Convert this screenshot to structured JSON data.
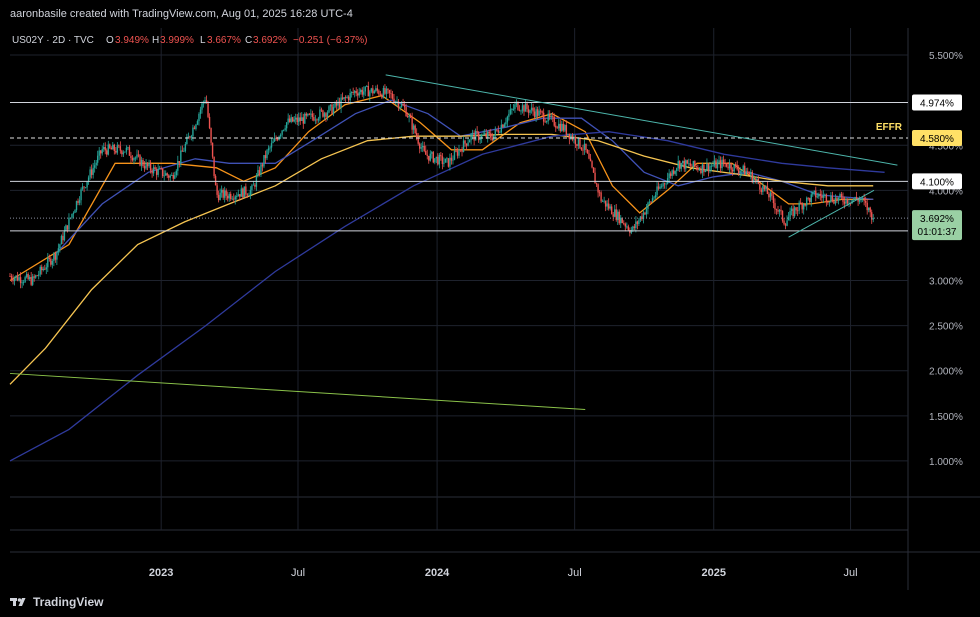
{
  "header": {
    "credit": "aaronbasile created with TradingView.com, Aug 01, 2025 16:28 UTC-4"
  },
  "legend": {
    "symbol": "US02Y · 2D · TVC",
    "o_label": "O",
    "o_value": "3.949%",
    "h_label": "H",
    "h_value": "3.999%",
    "l_label": "L",
    "l_value": "3.667%",
    "c_label": "C",
    "c_value": "3.692%",
    "change": "−0.251 (−6.37%)"
  },
  "footer": {
    "brand": "TradingView",
    "logo_icon": "tradingview-logo-icon"
  },
  "colors": {
    "background": "#000000",
    "grid": "#1e222d",
    "candle_up": "#26a69a",
    "candle_down": "#ef5350",
    "sma_fast": "#f7931a",
    "sma_mid": "#3f51b5",
    "sma_slow": "#f5c451",
    "sma_long": "#2f3a9c",
    "trendline_top": "#4db6ac",
    "trendline_green": "#8bc34a",
    "effr": "#ffe066"
  },
  "chart_data": {
    "type": "candlestick",
    "symbol": "US02Y",
    "interval": "2D",
    "source": "TVC",
    "y_axis": {
      "unit": "%",
      "range": [
        0.6,
        5.8
      ],
      "ticks": [
        "5.500%",
        "4.500%",
        "4.000%",
        "3.000%",
        "2.500%",
        "2.000%",
        "1.500%",
        "1.000%"
      ],
      "tick_values": [
        5.5,
        4.5,
        4.0,
        3.0,
        2.5,
        2.0,
        1.5,
        1.0
      ]
    },
    "x_axis": {
      "range": [
        "2022-06-15",
        "2025-09-15"
      ],
      "ticks": [
        "2023",
        "Jul",
        "2024",
        "Jul",
        "2025",
        "Jul"
      ],
      "tick_dates": [
        "2023-01-01",
        "2023-07-01",
        "2024-01-01",
        "2024-07-01",
        "2025-01-01",
        "2025-07-01"
      ]
    },
    "grid": true,
    "price_levels": [
      {
        "label": "4.974%",
        "value": 4.974,
        "style": "solid"
      },
      {
        "label": "4.100%",
        "value": 4.1,
        "style": "solid"
      },
      {
        "label": "3.551%",
        "value": 3.551,
        "style": "solid"
      },
      {
        "label": "4.580%",
        "value": 4.58,
        "style": "dashed",
        "name": "EFFR"
      }
    ],
    "last_price": {
      "label": "3.692%",
      "value": 3.692,
      "countdown": "01:01:37"
    },
    "close_series": [
      {
        "date": "2022-06-15",
        "c": 3.05
      },
      {
        "date": "2022-07-15",
        "c": 3.0
      },
      {
        "date": "2022-08-15",
        "c": 3.3
      },
      {
        "date": "2022-09-15",
        "c": 3.95
      },
      {
        "date": "2022-10-15",
        "c": 4.45
      },
      {
        "date": "2022-11-15",
        "c": 4.45
      },
      {
        "date": "2022-12-15",
        "c": 4.25
      },
      {
        "date": "2023-01-15",
        "c": 4.15
      },
      {
        "date": "2023-02-15",
        "c": 4.75
      },
      {
        "date": "2023-03-01",
        "c": 5.05
      },
      {
        "date": "2023-03-15",
        "c": 3.95
      },
      {
        "date": "2023-04-01",
        "c": 3.95
      },
      {
        "date": "2023-05-01",
        "c": 4.0
      },
      {
        "date": "2023-05-20",
        "c": 4.4
      },
      {
        "date": "2023-06-15",
        "c": 4.75
      },
      {
        "date": "2023-07-15",
        "c": 4.8
      },
      {
        "date": "2023-08-15",
        "c": 4.9
      },
      {
        "date": "2023-09-15",
        "c": 5.1
      },
      {
        "date": "2023-10-15",
        "c": 5.1
      },
      {
        "date": "2023-11-01",
        "c": 5.05
      },
      {
        "date": "2023-11-20",
        "c": 4.9
      },
      {
        "date": "2023-12-15",
        "c": 4.4
      },
      {
        "date": "2024-01-15",
        "c": 4.3
      },
      {
        "date": "2024-02-15",
        "c": 4.6
      },
      {
        "date": "2024-03-15",
        "c": 4.6
      },
      {
        "date": "2024-04-15",
        "c": 4.95
      },
      {
        "date": "2024-05-15",
        "c": 4.85
      },
      {
        "date": "2024-06-15",
        "c": 4.7
      },
      {
        "date": "2024-07-15",
        "c": 4.45
      },
      {
        "date": "2024-08-05",
        "c": 3.9
      },
      {
        "date": "2024-09-15",
        "c": 3.55
      },
      {
        "date": "2024-10-15",
        "c": 3.95
      },
      {
        "date": "2024-11-15",
        "c": 4.3
      },
      {
        "date": "2024-12-15",
        "c": 4.25
      },
      {
        "date": "2025-01-15",
        "c": 4.3
      },
      {
        "date": "2025-02-15",
        "c": 4.2
      },
      {
        "date": "2025-03-15",
        "c": 3.95
      },
      {
        "date": "2025-04-05",
        "c": 3.65
      },
      {
        "date": "2025-04-20",
        "c": 3.8
      },
      {
        "date": "2025-05-15",
        "c": 3.95
      },
      {
        "date": "2025-06-15",
        "c": 3.9
      },
      {
        "date": "2025-07-15",
        "c": 3.9
      },
      {
        "date": "2025-08-01",
        "c": 3.692
      }
    ],
    "moving_averages": [
      {
        "id": "fast",
        "points": [
          [
            "2022-06-15",
            3.0
          ],
          [
            "2022-09-01",
            3.4
          ],
          [
            "2022-11-01",
            4.3
          ],
          [
            "2023-01-15",
            4.3
          ],
          [
            "2023-03-15",
            4.25
          ],
          [
            "2023-04-20",
            4.1
          ],
          [
            "2023-06-01",
            4.25
          ],
          [
            "2023-07-15",
            4.65
          ],
          [
            "2023-09-01",
            4.95
          ],
          [
            "2023-10-20",
            5.05
          ],
          [
            "2023-12-10",
            4.75
          ],
          [
            "2024-01-20",
            4.45
          ],
          [
            "2024-03-01",
            4.45
          ],
          [
            "2024-04-20",
            4.75
          ],
          [
            "2024-06-01",
            4.85
          ],
          [
            "2024-07-15",
            4.65
          ],
          [
            "2024-08-20",
            4.05
          ],
          [
            "2024-09-25",
            3.75
          ],
          [
            "2024-11-01",
            4.0
          ],
          [
            "2024-12-10",
            4.3
          ],
          [
            "2025-01-25",
            4.3
          ],
          [
            "2025-03-01",
            4.1
          ],
          [
            "2025-04-10",
            3.85
          ],
          [
            "2025-05-10",
            3.85
          ],
          [
            "2025-06-20",
            3.9
          ],
          [
            "2025-07-31",
            3.9
          ]
        ]
      },
      {
        "id": "mid",
        "points": [
          [
            "2022-08-15",
            3.3
          ],
          [
            "2022-10-15",
            3.85
          ],
          [
            "2022-12-15",
            4.2
          ],
          [
            "2023-02-15",
            4.35
          ],
          [
            "2023-04-01",
            4.3
          ],
          [
            "2023-06-01",
            4.3
          ],
          [
            "2023-07-20",
            4.55
          ],
          [
            "2023-09-15",
            4.85
          ],
          [
            "2023-11-01",
            5.0
          ],
          [
            "2023-12-20",
            4.85
          ],
          [
            "2024-02-01",
            4.6
          ],
          [
            "2024-04-01",
            4.7
          ],
          [
            "2024-05-20",
            4.8
          ],
          [
            "2024-07-10",
            4.8
          ],
          [
            "2024-08-20",
            4.55
          ],
          [
            "2024-10-01",
            4.2
          ],
          [
            "2024-11-15",
            4.05
          ],
          [
            "2025-01-01",
            4.15
          ],
          [
            "2025-02-15",
            4.2
          ],
          [
            "2025-04-01",
            4.1
          ],
          [
            "2025-05-20",
            3.95
          ],
          [
            "2025-07-31",
            3.9
          ]
        ]
      },
      {
        "id": "slow",
        "points": [
          [
            "2022-06-15",
            1.85
          ],
          [
            "2022-08-01",
            2.25
          ],
          [
            "2022-10-01",
            2.9
          ],
          [
            "2022-12-01",
            3.4
          ],
          [
            "2023-02-01",
            3.65
          ],
          [
            "2023-04-01",
            3.85
          ],
          [
            "2023-06-01",
            4.05
          ],
          [
            "2023-08-01",
            4.35
          ],
          [
            "2023-10-01",
            4.55
          ],
          [
            "2023-12-01",
            4.6
          ],
          [
            "2024-02-01",
            4.6
          ],
          [
            "2024-04-01",
            4.62
          ],
          [
            "2024-06-01",
            4.62
          ],
          [
            "2024-08-01",
            4.55
          ],
          [
            "2024-10-01",
            4.38
          ],
          [
            "2024-12-01",
            4.25
          ],
          [
            "2025-02-01",
            4.18
          ],
          [
            "2025-04-01",
            4.1
          ],
          [
            "2025-06-01",
            4.05
          ],
          [
            "2025-07-31",
            4.05
          ]
        ]
      },
      {
        "id": "long",
        "points": [
          [
            "2022-06-15",
            1.0
          ],
          [
            "2022-09-01",
            1.35
          ],
          [
            "2022-12-01",
            1.95
          ],
          [
            "2023-03-01",
            2.5
          ],
          [
            "2023-06-01",
            3.1
          ],
          [
            "2023-09-01",
            3.6
          ],
          [
            "2023-12-01",
            4.05
          ],
          [
            "2024-03-01",
            4.4
          ],
          [
            "2024-06-01",
            4.6
          ],
          [
            "2024-08-15",
            4.65
          ],
          [
            "2024-11-01",
            4.55
          ],
          [
            "2025-01-15",
            4.4
          ],
          [
            "2025-04-01",
            4.3
          ],
          [
            "2025-06-01",
            4.25
          ],
          [
            "2025-08-15",
            4.2
          ]
        ]
      }
    ],
    "trendlines": [
      {
        "id": "descending-top",
        "from": [
          "2023-10-25",
          5.28
        ],
        "to": [
          "2025-09-01",
          4.28
        ]
      },
      {
        "id": "rising-wedge",
        "from": [
          "2025-04-10",
          3.48
        ],
        "to": [
          "2025-08-01",
          4.0
        ]
      },
      {
        "id": "long-green",
        "from": [
          "2022-06-15",
          1.97
        ],
        "to": [
          "2024-07-15",
          1.57
        ]
      }
    ]
  }
}
